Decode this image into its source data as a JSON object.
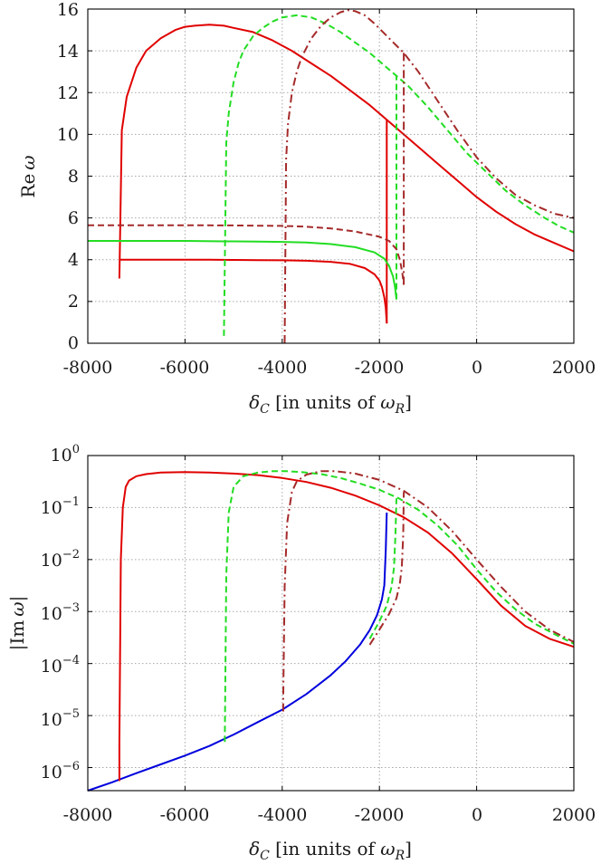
{
  "chart_data": [
    {
      "type": "line",
      "id": "re",
      "title": "",
      "xlabel": "δ_C [in units of ω_R]",
      "ylabel": "Re ω",
      "xlim": [
        -8000,
        2000
      ],
      "ylim": [
        0,
        16
      ],
      "yscale": "linear",
      "xticks": [
        -8000,
        -6000,
        -4000,
        -2000,
        0,
        2000
      ],
      "yticks": [
        0,
        2,
        4,
        6,
        8,
        10,
        12,
        14,
        16
      ],
      "grid": true,
      "series": [
        {
          "name": "red solid upper",
          "color": "#e00000",
          "dash": "solid",
          "x": [
            -7350,
            -7300,
            -7200,
            -7000,
            -6800,
            -6500,
            -6200,
            -6000,
            -5800,
            -5500,
            -5200,
            -5000,
            -4600,
            -4200,
            -3800,
            -3400,
            -3000,
            -2600,
            -2200,
            -1850,
            -1600,
            -1200,
            -800,
            -400,
            0,
            400,
            800,
            1200,
            1600,
            2000
          ],
          "y": [
            3.1,
            10.2,
            11.8,
            13.2,
            14.0,
            14.6,
            15.0,
            15.15,
            15.2,
            15.25,
            15.2,
            15.1,
            14.9,
            14.5,
            14.0,
            13.4,
            12.8,
            12.1,
            11.4,
            10.7,
            10.2,
            9.4,
            8.6,
            7.8,
            7.0,
            6.3,
            5.7,
            5.2,
            4.8,
            4.4
          ]
        },
        {
          "name": "red solid lower",
          "color": "#e00000",
          "dash": "solid",
          "x": [
            -7350,
            -7000,
            -6500,
            -6000,
            -5500,
            -5000,
            -4500,
            -4000,
            -3500,
            -3000,
            -2600,
            -2300,
            -2100,
            -2000,
            -1950,
            -1900,
            -1870,
            -1850
          ],
          "y": [
            4.0,
            4.0,
            4.0,
            4.0,
            4.0,
            3.99,
            3.98,
            3.97,
            3.95,
            3.9,
            3.8,
            3.6,
            3.3,
            3.0,
            2.7,
            2.2,
            1.7,
            0.95
          ]
        },
        {
          "name": "red solid vertical",
          "color": "#e00000",
          "dash": "solid",
          "x": [
            -1850,
            -1850
          ],
          "y": [
            0.95,
            10.7
          ]
        },
        {
          "name": "green dashed upper",
          "color": "#22dd22",
          "dash": "dashed",
          "x": [
            -5200,
            -5150,
            -5100,
            -5000,
            -4900,
            -4800,
            -4600,
            -4400,
            -4200,
            -4000,
            -3700,
            -3400,
            -3100,
            -2800,
            -2500,
            -2200,
            -1900,
            -1650,
            -1400,
            -1000,
            -600,
            -200,
            200,
            600,
            1000,
            1400,
            1700,
            2000
          ],
          "y": [
            0.35,
            9.6,
            11.0,
            12.5,
            13.4,
            14.0,
            14.7,
            15.1,
            15.4,
            15.6,
            15.7,
            15.6,
            15.3,
            14.9,
            14.4,
            13.9,
            13.3,
            12.8,
            12.3,
            11.3,
            10.2,
            9.1,
            8.2,
            7.3,
            6.6,
            6.0,
            5.6,
            5.3
          ]
        },
        {
          "name": "green lower",
          "color": "#22dd22",
          "dash": "solid-then-dashed",
          "x": [
            -8000,
            -7000,
            -6000,
            -5200,
            -5000,
            -4500,
            -4000,
            -3500,
            -3000,
            -2500,
            -2100,
            -1900,
            -1800,
            -1720,
            -1680,
            -1650
          ],
          "y": [
            4.9,
            4.9,
            4.9,
            4.88,
            4.88,
            4.87,
            4.85,
            4.82,
            4.75,
            4.6,
            4.35,
            4.05,
            3.7,
            3.2,
            2.7,
            2.1
          ]
        },
        {
          "name": "green vertical",
          "color": "#22dd22",
          "dash": "dashed",
          "x": [
            -1650,
            -1650
          ],
          "y": [
            2.1,
            12.8
          ]
        },
        {
          "name": "brown dash-dot upper",
          "color": "#a52a2a",
          "dash": "dashdot",
          "x": [
            -3950,
            -3920,
            -3880,
            -3800,
            -3700,
            -3600,
            -3400,
            -3200,
            -3000,
            -2800,
            -2650,
            -2500,
            -2300,
            -2100,
            -1800,
            -1500,
            -1200,
            -800,
            -400,
            0,
            400,
            800,
            1200,
            1600,
            2000
          ],
          "y": [
            0.0,
            8.8,
            10.5,
            12.0,
            13.0,
            13.7,
            14.6,
            15.2,
            15.6,
            15.85,
            15.95,
            15.9,
            15.7,
            15.3,
            14.6,
            13.9,
            13.0,
            11.6,
            10.2,
            8.9,
            7.9,
            7.1,
            6.6,
            6.2,
            6.0
          ]
        },
        {
          "name": "brown lower",
          "color": "#a52a2a",
          "dash": "dashed-then-dashdot",
          "x": [
            -8000,
            -7000,
            -6000,
            -5000,
            -4500,
            -4000,
            -3500,
            -3000,
            -2500,
            -2000,
            -1800,
            -1650,
            -1580,
            -1530,
            -1500
          ],
          "y": [
            5.65,
            5.65,
            5.65,
            5.64,
            5.63,
            5.62,
            5.58,
            5.5,
            5.35,
            5.1,
            4.9,
            4.5,
            4.0,
            3.4,
            2.8
          ]
        },
        {
          "name": "brown vertical",
          "color": "#a52a2a",
          "dash": "dashdot",
          "x": [
            -1500,
            -1500
          ],
          "y": [
            2.8,
            13.9
          ]
        }
      ]
    },
    {
      "type": "line",
      "id": "im",
      "title": "",
      "xlabel": "δ_C [in units of ω_R]",
      "ylabel": "|Im ω|",
      "xlim": [
        -8000,
        2000
      ],
      "ylim": [
        3.6e-07,
        1
      ],
      "yscale": "log",
      "xticks": [
        -8000,
        -6000,
        -4000,
        -2000,
        0,
        2000
      ],
      "yticks": [
        1e-06,
        1e-05,
        0.0001,
        0.001,
        0.01,
        0.1,
        1
      ],
      "ytick_exponents": [
        "−6",
        "−5",
        "−4",
        "−3",
        "−2",
        "−1",
        "0"
      ],
      "grid": true,
      "series": [
        {
          "name": "blue solid",
          "color": "#0000dd",
          "dash": "solid",
          "x": [
            -8000,
            -7500,
            -7000,
            -6500,
            -6000,
            -5500,
            -5000,
            -4500,
            -4000,
            -3500,
            -3000,
            -2700,
            -2400,
            -2200,
            -2050,
            -1950,
            -1900,
            -1870,
            -1850
          ],
          "y": [
            3.6e-07,
            5.2e-07,
            7.8e-07,
            1.15e-06,
            1.7e-06,
            2.6e-06,
            4.3e-06,
            7.5e-06,
            1.3e-05,
            2.6e-05,
            6e-05,
            0.00011,
            0.00023,
            0.00044,
            0.00085,
            0.0017,
            0.0032,
            0.015,
            0.08
          ]
        },
        {
          "name": "red solid",
          "color": "#e00000",
          "dash": "solid",
          "x": [
            -7350,
            -7350,
            -7320,
            -7280,
            -7220,
            -7150,
            -7000,
            -6800,
            -6500,
            -6000,
            -5500,
            -5000,
            -4500,
            -4000,
            -3500,
            -3000,
            -2500,
            -2000,
            -1500,
            -1000,
            -500,
            0,
            500,
            1000,
            1500,
            2000
          ],
          "y": [
            5.5e-07,
            3e-06,
            0.01,
            0.1,
            0.25,
            0.33,
            0.4,
            0.44,
            0.47,
            0.48,
            0.47,
            0.45,
            0.42,
            0.37,
            0.31,
            0.24,
            0.17,
            0.11,
            0.065,
            0.033,
            0.013,
            0.0042,
            0.0013,
            0.00053,
            0.0003,
            0.00021
          ]
        },
        {
          "name": "green dashed",
          "color": "#22dd22",
          "dash": "dashed",
          "x": [
            -5180,
            -5180,
            -5150,
            -5100,
            -5000,
            -4800,
            -4500,
            -4200,
            -3900,
            -3600,
            -3200,
            -2800,
            -2400,
            -2000,
            -1600,
            -1200,
            -800,
            -400,
            0,
            400,
            800,
            1200,
            1600,
            2000
          ],
          "y": [
            3.1e-06,
            4e-06,
            0.005,
            0.08,
            0.25,
            0.4,
            0.47,
            0.5,
            0.5,
            0.48,
            0.44,
            0.37,
            0.29,
            0.22,
            0.15,
            0.09,
            0.045,
            0.019,
            0.0065,
            0.0024,
            0.0011,
            0.00058,
            0.00037,
            0.00024
          ]
        },
        {
          "name": "green lower dashed",
          "color": "#22dd22",
          "dash": "dashed",
          "x": [
            -2200,
            -2000,
            -1850,
            -1750,
            -1700,
            -1670,
            -1650
          ],
          "y": [
            0.0003,
            0.00065,
            0.0013,
            0.003,
            0.007,
            0.03,
            0.15
          ]
        },
        {
          "name": "brown dash-dot",
          "color": "#a52a2a",
          "dash": "dashdot",
          "x": [
            -3980,
            -3980,
            -3950,
            -3900,
            -3800,
            -3700,
            -3500,
            -3200,
            -2900,
            -2500,
            -2000,
            -1500,
            -1000,
            -500,
            0,
            500,
            1000,
            1500,
            2000
          ],
          "y": [
            1.2e-05,
            2e-05,
            0.003,
            0.05,
            0.2,
            0.32,
            0.43,
            0.5,
            0.5,
            0.45,
            0.34,
            0.21,
            0.1,
            0.035,
            0.01,
            0.003,
            0.001,
            0.00045,
            0.00026
          ]
        },
        {
          "name": "brown lower dash-dot",
          "color": "#a52a2a",
          "dash": "dashdot",
          "x": [
            -2200,
            -2000,
            -1800,
            -1650,
            -1580,
            -1540,
            -1510,
            -1500
          ],
          "y": [
            0.00023,
            0.00045,
            0.0009,
            0.0018,
            0.0035,
            0.007,
            0.03,
            0.2
          ]
        }
      ]
    }
  ]
}
